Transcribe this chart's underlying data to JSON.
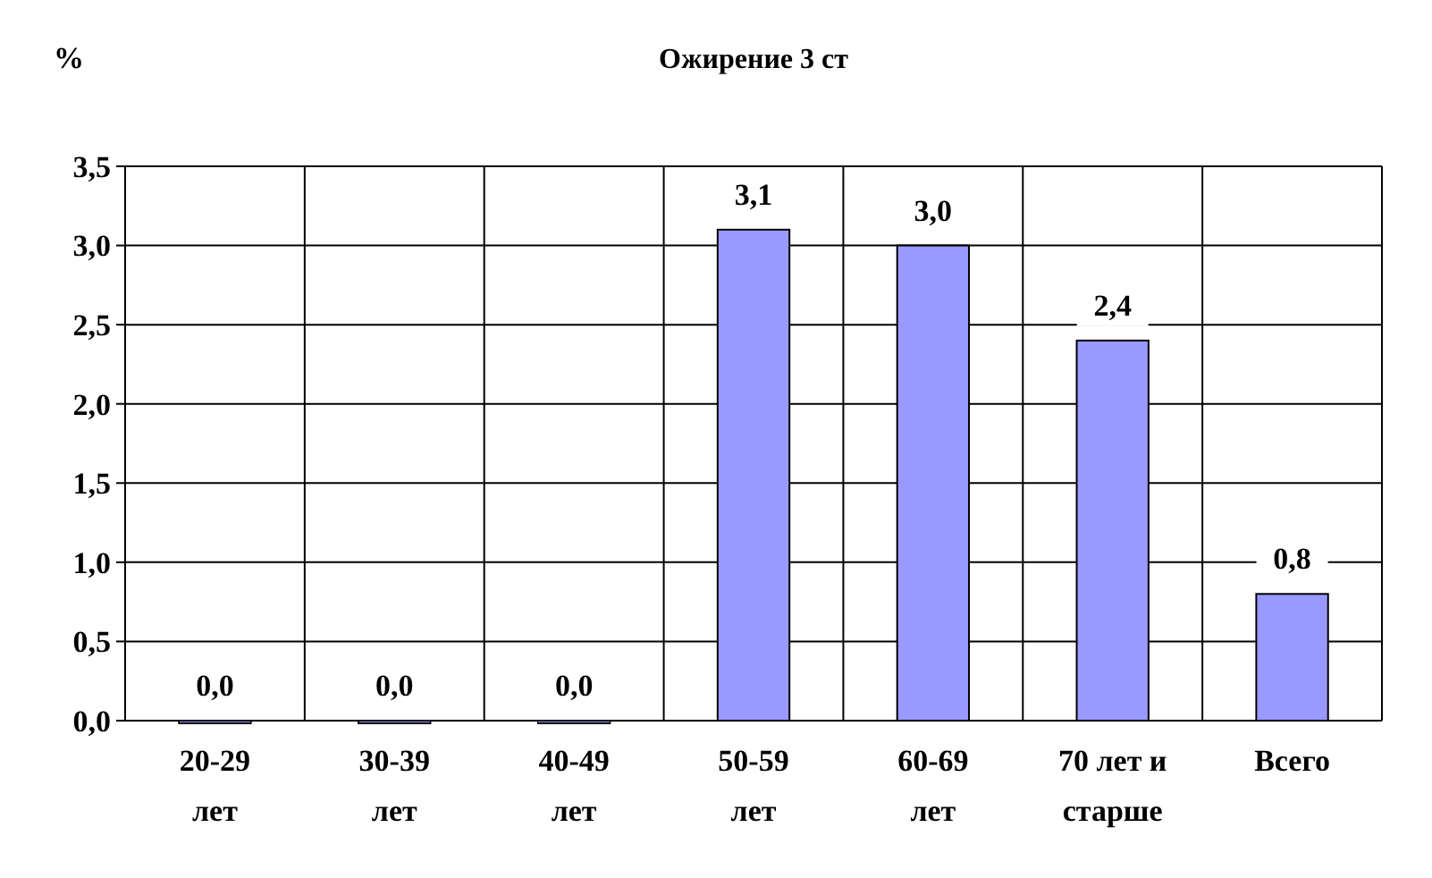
{
  "chart_data": {
    "type": "bar",
    "title": "Ожирение 3 ст",
    "ylabel": "%",
    "categories": [
      "20-29 лет",
      "30-39 лет",
      "40-49 лет",
      "50-59 лет",
      "60-69 лет",
      "70 лет и старше",
      "Всего"
    ],
    "values": [
      0.0,
      0.0,
      0.0,
      3.1,
      3.0,
      2.4,
      0.8
    ],
    "color": "#9999ff",
    "value_labels": [
      "0,0",
      "0,0",
      "0,0",
      "3,1",
      "3,0",
      "2,4",
      "0,8"
    ],
    "ylim": [
      0,
      3.5
    ],
    "yticks": [
      {
        "value": 0,
        "label": "0,0"
      },
      {
        "value": 0.5,
        "label": "0,5"
      },
      {
        "value": 1,
        "label": "1,0"
      },
      {
        "value": 1.5,
        "label": "1,5"
      },
      {
        "value": 2,
        "label": "2,0"
      },
      {
        "value": 2.5,
        "label": "2,5"
      },
      {
        "value": 3,
        "label": "3,0"
      },
      {
        "value": 3.5,
        "label": "3,5"
      }
    ],
    "grid": true
  }
}
